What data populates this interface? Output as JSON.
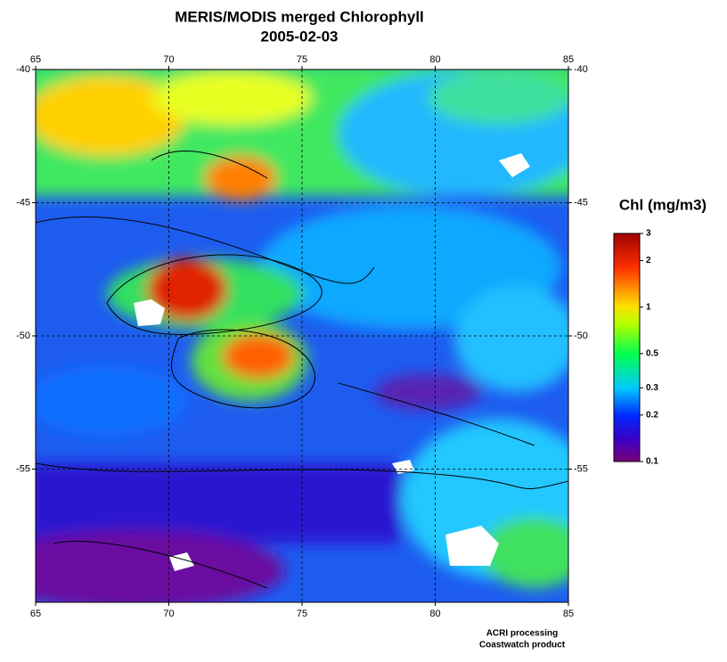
{
  "title": "MERIS/MODIS merged Chlorophyll",
  "subtitle": "2005-02-03",
  "map": {
    "xlim": [
      65,
      85
    ],
    "ylim": [
      -40,
      -60
    ],
    "xticks": [
      65,
      70,
      75,
      80,
      85
    ],
    "yticks": [
      -40,
      -45,
      -50,
      -55
    ],
    "grid": true
  },
  "colorbar": {
    "title": "Chl (mg/m3)",
    "lim": [
      0.1,
      3
    ],
    "log": true,
    "ticks": [
      3,
      2,
      1,
      0.5,
      0.3,
      0.2,
      0.1
    ]
  },
  "credits": [
    "ACRI processing",
    "Coastwatch product"
  ]
}
